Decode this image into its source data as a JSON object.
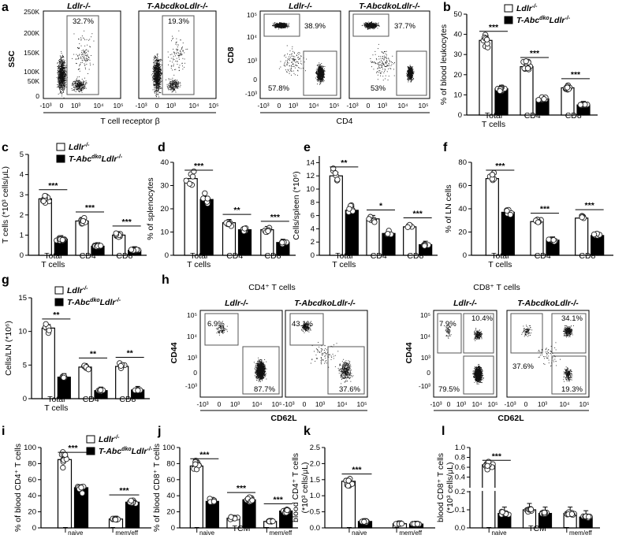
{
  "figure": {
    "panel_letters": [
      "a",
      "b",
      "c",
      "d",
      "e",
      "f",
      "g",
      "h",
      "i",
      "j",
      "k",
      "l"
    ],
    "groups": {
      "ctrl": "Ldlr-/-",
      "ko": "T-AbcdkoLdlr-/-"
    },
    "colors": {
      "ctrl_fill": "#ffffff",
      "ko_fill": "#000000",
      "dots": "#222222"
    },
    "panel_a": {
      "flow1": {
        "title": "Ldlr-/-",
        "pct": "32.7%"
      },
      "flow2": {
        "title": "T-AbcdkoLdlr-/-",
        "pct": "19.3%"
      },
      "flow3": {
        "title": "Ldlr-/-",
        "top": "38.9%",
        "bottom": "57.8%"
      },
      "flow4": {
        "title": "T-AbcdkoLdlr-/-",
        "top": "37.7%",
        "bottom": "53%"
      },
      "ssc_label": "SSC",
      "ssc_ticks": [
        "250K",
        "200K",
        "150K",
        "100K",
        "50K",
        "0"
      ],
      "x_ticks": [
        "-10³",
        "0",
        "10³",
        "10⁴",
        "10⁵"
      ],
      "cd8_label": "CD8",
      "cd8_ticks": [
        "10⁵",
        "10⁴",
        "10³",
        "0",
        "-10³"
      ],
      "xlabel1": "T cell receptor β",
      "xlabel2": "CD4"
    },
    "panel_h": {
      "cd4_title": "CD4⁺ T cells",
      "cd8_title": "CD8⁺ T cells",
      "flow1": {
        "title": "Ldlr-/-",
        "a": "6.9%",
        "b": "87.7%"
      },
      "flow2": {
        "title": "T-AbcdkoLdlr-/-",
        "a": "43.1%",
        "b": "37.6%"
      },
      "flow3": {
        "title": "Ldlr-/-",
        "a": "7.9%",
        "b": "10.4%",
        "c": "79.5%"
      },
      "flow4": {
        "title": "T-AbcdkoLdlr-/-",
        "a": "34.1%",
        "b": "37.6%",
        "c": "19.3%"
      },
      "ylabel": "CD44",
      "xlabel": "CD62L",
      "y_ticks": [
        "10⁵",
        "10⁴",
        "10³",
        "0",
        "-10³"
      ],
      "x_ticks": [
        "-10³",
        "0",
        "10³",
        "10⁴",
        "10⁵"
      ]
    }
  },
  "chart_data": [
    {
      "id": "b",
      "type": "bar",
      "ylabel": "% of blood leukocytes",
      "ylim": [
        0,
        50
      ],
      "yticks": [
        "0",
        "10",
        "20",
        "30",
        "40",
        "50"
      ],
      "categories": [
        "Total T cells",
        "CD4⁺",
        "CD8⁺"
      ],
      "series": [
        {
          "name": "Ldlr-/-",
          "values": [
            37,
            24,
            13.5
          ]
        },
        {
          "name": "T-AbcdkoLdlr-/-",
          "values": [
            13,
            8,
            5
          ]
        }
      ],
      "significance": [
        "***",
        "***",
        "***"
      ]
    },
    {
      "id": "c",
      "type": "bar",
      "ylabel": "T cells (*10³ cells/μL)",
      "ylim": [
        0,
        5
      ],
      "yticks": [
        "0",
        "1",
        "2",
        "3",
        "4",
        "5"
      ],
      "categories": [
        "Total T cells",
        "CD4⁺",
        "CD8⁺"
      ],
      "series": [
        {
          "name": "Ldlr-/-",
          "values": [
            2.8,
            1.7,
            1.0
          ]
        },
        {
          "name": "T-AbcdkoLdlr-/-",
          "values": [
            0.8,
            0.45,
            0.25
          ]
        }
      ],
      "significance": [
        "***",
        "***",
        "***"
      ]
    },
    {
      "id": "d",
      "type": "bar",
      "ylabel": "% of splenocytes",
      "ylim": [
        0,
        40
      ],
      "yticks": [
        "0",
        "10",
        "20",
        "30",
        "40"
      ],
      "categories": [
        "Total T cells",
        "CD4⁺",
        "CD8⁺"
      ],
      "series": [
        {
          "name": "Ldlr-/-",
          "values": [
            33,
            14,
            11
          ]
        },
        {
          "name": "T-AbcdkoLdlr-/-",
          "values": [
            24,
            11,
            5.5
          ]
        }
      ],
      "significance": [
        "***",
        "**",
        "***"
      ]
    },
    {
      "id": "e",
      "type": "bar",
      "ylabel": "Cells/spleen (*10⁶)",
      "ylim": [
        0,
        15
      ],
      "yticks": [
        "0",
        "2",
        "4",
        "6",
        "8",
        "10",
        "12",
        "14"
      ],
      "categories": [
        "Total T cells",
        "CD4⁺",
        "CD8⁺"
      ],
      "series": [
        {
          "name": "Ldlr-/-",
          "values": [
            12,
            5.5,
            4.3
          ]
        },
        {
          "name": "T-AbcdkoLdlr-/-",
          "values": [
            6.8,
            3.3,
            1.6
          ]
        }
      ],
      "significance": [
        "**",
        "*",
        "***"
      ]
    },
    {
      "id": "f",
      "type": "bar",
      "ylabel": "% of LN cells",
      "ylim": [
        0,
        80
      ],
      "yticks": [
        "0",
        "20",
        "40",
        "60",
        "80"
      ],
      "categories": [
        "Total T cells",
        "CD4⁺",
        "CD8⁺"
      ],
      "series": [
        {
          "name": "Ldlr-/-",
          "values": [
            66,
            29,
            32
          ]
        },
        {
          "name": "T-AbcdkoLdlr-/-",
          "values": [
            37,
            13,
            17
          ]
        }
      ],
      "significance": [
        "***",
        "***",
        "***"
      ]
    },
    {
      "id": "g",
      "type": "bar",
      "ylabel": "Cells/LN (*10⁶)",
      "ylim": [
        0,
        15
      ],
      "yticks": [
        "0",
        "5",
        "10",
        "15"
      ],
      "categories": [
        "Total T cells",
        "CD4⁺",
        "CD8⁺"
      ],
      "series": [
        {
          "name": "Ldlr-/-",
          "values": [
            10.5,
            4.7,
            4.8
          ]
        },
        {
          "name": "T-AbcdkoLdlr-/-",
          "values": [
            3.2,
            1.2,
            1.3
          ]
        }
      ],
      "significance": [
        "**",
        "**",
        "**"
      ]
    },
    {
      "id": "i",
      "type": "bar",
      "ylabel": "% of blood CD4⁺ T cells",
      "ylim": [
        0,
        100
      ],
      "yticks": [
        "0",
        "20",
        "40",
        "60",
        "80",
        "100"
      ],
      "categories": [
        "Tnaive",
        "Tmem/eff"
      ],
      "series": [
        {
          "name": "Ldlr-/-",
          "values": [
            85,
            11
          ]
        },
        {
          "name": "T-AbcdkoLdlr-/-",
          "values": [
            50,
            32
          ]
        }
      ],
      "significance": [
        "***",
        "***"
      ]
    },
    {
      "id": "j",
      "type": "bar",
      "ylabel": "% of blood CD8⁺ T cells",
      "ylim": [
        0,
        100
      ],
      "yticks": [
        "0",
        "20",
        "40",
        "60",
        "80",
        "100"
      ],
      "categories": [
        "Tnaive",
        "TCM",
        "Tmem/eff"
      ],
      "series": [
        {
          "name": "Ldlr-/-",
          "values": [
            77,
            12,
            8
          ]
        },
        {
          "name": "T-AbcdkoLdlr-/-",
          "values": [
            33,
            35,
            21
          ]
        }
      ],
      "significance": [
        "***",
        "***",
        "***"
      ]
    },
    {
      "id": "k",
      "type": "bar",
      "ylabel": "blood CD4⁺ T cells (*10³ cells/μL)",
      "ylim": [
        0,
        2.5
      ],
      "yticks": [
        "0.0",
        "0.5",
        "1.0",
        "1.5",
        "2.0",
        "2.5"
      ],
      "categories": [
        "Tnaive",
        "Tmem/eff"
      ],
      "series": [
        {
          "name": "Ldlr-/-",
          "values": [
            1.45,
            0.13
          ]
        },
        {
          "name": "T-AbcdkoLdlr-/-",
          "values": [
            0.2,
            0.12
          ]
        }
      ],
      "significance": [
        "***",
        ""
      ]
    },
    {
      "id": "l",
      "type": "bar",
      "ylabel": "blood CD8⁺ T cells (*10³ cells/μL)",
      "ylim": [
        0,
        1.0
      ],
      "yticks": [
        "0.0",
        "0.1",
        "0.2",
        "0.4",
        "0.6",
        "0.8",
        "1.0"
      ],
      "categories": [
        "Tnaive",
        "TCM",
        "Tmem/eff"
      ],
      "series": [
        {
          "name": "Ldlr-/-",
          "values": [
            0.65,
            0.1,
            0.08
          ]
        },
        {
          "name": "T-AbcdkoLdlr-/-",
          "values": [
            0.08,
            0.08,
            0.06
          ]
        }
      ],
      "significance": [
        "***",
        "",
        ""
      ]
    }
  ]
}
